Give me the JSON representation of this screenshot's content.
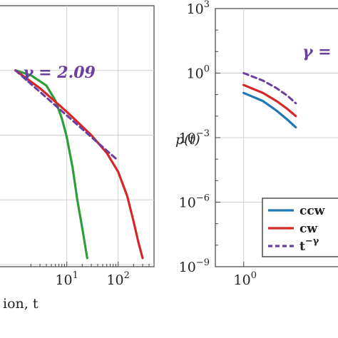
{
  "chart_data": [
    {
      "type": "line",
      "scale": {
        "x": "log",
        "y": "log"
      },
      "xlabel": "ion, t",
      "x_ticks": [
        {
          "base": "10",
          "exp": "1",
          "value": 10
        },
        {
          "base": "10",
          "exp": "2",
          "value": 100
        }
      ],
      "grid": true,
      "annotation": {
        "text": "γ = 2.09",
        "color": "#6b3fa0"
      },
      "series": [
        {
          "color": "#2e9e3a",
          "style": "solid",
          "x": [
            1,
            2,
            4,
            6,
            8,
            10,
            13,
            16,
            20,
            25
          ],
          "y": [
            1.0,
            0.6,
            0.2,
            0.04,
            0.006,
            0.0008,
            3e-05,
            1e-06,
            5e-08,
            2e-09
          ]
        },
        {
          "color": "#d62728",
          "style": "solid",
          "x": [
            1,
            3,
            10,
            30,
            60,
            100,
            150,
            200,
            250,
            300
          ],
          "y": [
            1.0,
            0.15,
            0.012,
            0.001,
            0.00015,
            2e-05,
            1.5e-06,
            1e-07,
            1e-08,
            2e-09
          ]
        },
        {
          "color": "#6b3fa0",
          "style": "dashed",
          "x": [
            1,
            100
          ],
          "y": [
            1.0,
            6.6e-05
          ]
        }
      ]
    },
    {
      "type": "line",
      "scale": {
        "x": "log",
        "y": "log"
      },
      "ylabel": "p(t)",
      "y_ticks": [
        {
          "base": "10",
          "exp": "3",
          "value": 1000
        },
        {
          "base": "10",
          "exp": "0",
          "value": 1
        },
        {
          "base": "10",
          "exp": "−3",
          "value": 0.001
        },
        {
          "base": "10",
          "exp": "−6",
          "value": 1e-06
        },
        {
          "base": "10",
          "exp": "−9",
          "value": 1e-09
        }
      ],
      "x_ticks": [
        {
          "base": "10",
          "exp": "0",
          "value": 1
        }
      ],
      "ylim": [
        1e-09,
        1000
      ],
      "grid": true,
      "annotation": {
        "text": "γ =",
        "color": "#6b3fa0"
      },
      "legend": {
        "placement": "bottom-right",
        "entries": [
          {
            "label": "ccw",
            "color": "#1f77b4",
            "style": "solid"
          },
          {
            "label": "cw",
            "color": "#d62728",
            "style": "solid"
          },
          {
            "label_base": "t",
            "label_exp": "−γ",
            "color": "#6b3fa0",
            "style": "dashed"
          }
        ]
      },
      "series": [
        {
          "color": "#1f77b4",
          "style": "solid",
          "x": [
            1,
            1.5,
            2,
            2.5,
            3
          ],
          "y": [
            0.12,
            0.05,
            0.018,
            0.007,
            0.003
          ]
        },
        {
          "color": "#d62728",
          "style": "solid",
          "x": [
            1,
            1.5,
            2,
            2.5,
            3
          ],
          "y": [
            0.28,
            0.12,
            0.05,
            0.022,
            0.01
          ]
        },
        {
          "color": "#6b3fa0",
          "style": "dashed",
          "x": [
            1,
            1.5,
            2,
            2.5,
            3
          ],
          "y": [
            1.0,
            0.45,
            0.2,
            0.09,
            0.04
          ]
        }
      ]
    }
  ]
}
